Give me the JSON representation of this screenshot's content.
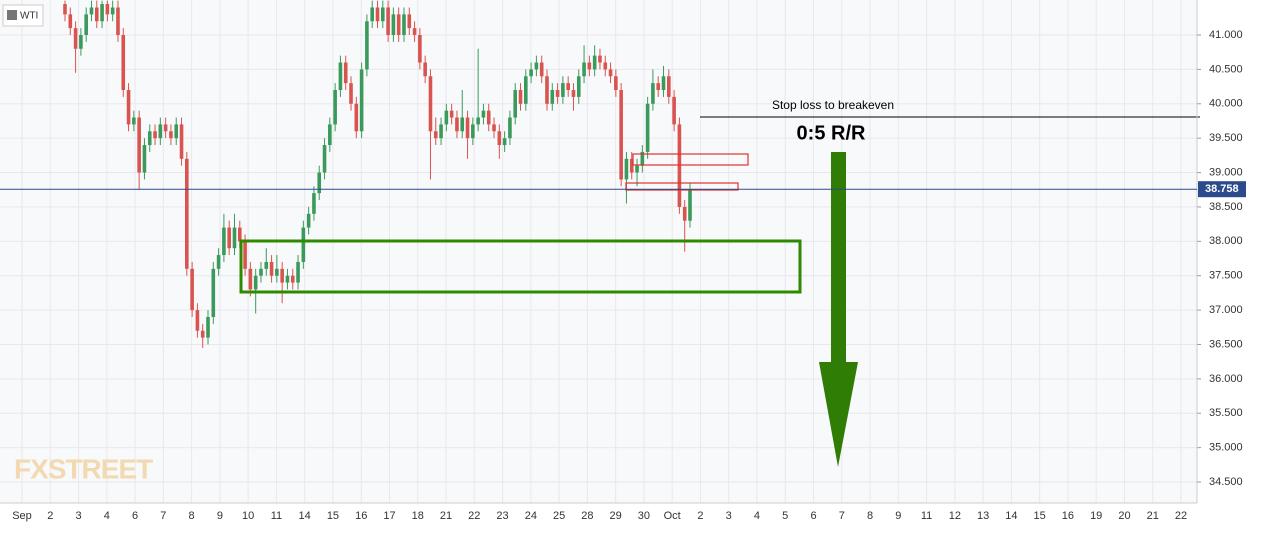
{
  "chart_data": {
    "type": "candlestick",
    "symbol": "WTI",
    "categories": [
      "Sep",
      "2",
      "3",
      "4",
      "6",
      "7",
      "8",
      "9",
      "10",
      "11",
      "14",
      "15",
      "16",
      "17",
      "18",
      "21",
      "22",
      "23",
      "24",
      "25",
      "28",
      "29",
      "30",
      "Oct",
      "2",
      "3",
      "4",
      "5",
      "6",
      "7",
      "8",
      "9",
      "11",
      "12",
      "13",
      "14",
      "15",
      "16",
      "19",
      "20",
      "21",
      "22"
    ],
    "candles": [
      [
        41.45,
        41.5,
        41.2,
        41.3
      ],
      [
        41.3,
        41.4,
        41.0,
        41.1
      ],
      [
        41.1,
        41.2,
        40.45,
        40.8
      ],
      [
        40.8,
        41.1,
        40.7,
        41.0
      ],
      [
        41.0,
        41.4,
        40.9,
        41.3
      ],
      [
        41.3,
        41.5,
        41.2,
        41.4
      ],
      [
        41.4,
        41.5,
        41.1,
        41.2
      ],
      [
        41.2,
        41.5,
        41.1,
        41.45
      ],
      [
        41.45,
        41.5,
        41.2,
        41.3
      ],
      [
        41.3,
        41.5,
        41.2,
        41.4
      ],
      [
        41.4,
        41.5,
        40.9,
        41.0
      ],
      [
        41.0,
        41.1,
        40.1,
        40.2
      ],
      [
        40.2,
        40.3,
        39.6,
        39.7
      ],
      [
        39.7,
        39.9,
        39.6,
        39.8
      ],
      [
        39.8,
        39.9,
        38.75,
        39.0
      ],
      [
        39.0,
        39.5,
        38.9,
        39.4
      ],
      [
        39.4,
        39.7,
        39.3,
        39.6
      ],
      [
        39.6,
        39.7,
        39.4,
        39.5
      ],
      [
        39.5,
        39.8,
        39.4,
        39.7
      ],
      [
        39.7,
        39.8,
        39.5,
        39.6
      ],
      [
        39.6,
        39.7,
        39.4,
        39.5
      ],
      [
        39.5,
        39.8,
        39.4,
        39.7
      ],
      [
        39.7,
        39.8,
        39.1,
        39.2
      ],
      [
        39.2,
        39.3,
        37.5,
        37.6
      ],
      [
        37.6,
        37.7,
        36.9,
        37.0
      ],
      [
        37.0,
        37.1,
        36.6,
        36.7
      ],
      [
        36.7,
        36.8,
        36.45,
        36.6
      ],
      [
        36.6,
        37.0,
        36.5,
        36.9
      ],
      [
        36.9,
        37.7,
        36.8,
        37.6
      ],
      [
        37.6,
        37.9,
        37.5,
        37.8
      ],
      [
        37.8,
        38.4,
        37.7,
        38.2
      ],
      [
        38.2,
        38.3,
        37.8,
        37.9
      ],
      [
        37.9,
        38.4,
        37.8,
        38.2
      ],
      [
        38.2,
        38.3,
        37.9,
        38.0
      ],
      [
        38.0,
        38.1,
        37.5,
        37.6
      ],
      [
        37.6,
        37.7,
        37.2,
        37.3
      ],
      [
        37.3,
        37.6,
        36.95,
        37.5
      ],
      [
        37.5,
        37.7,
        37.4,
        37.6
      ],
      [
        37.6,
        37.9,
        37.5,
        37.7
      ],
      [
        37.7,
        37.8,
        37.4,
        37.5
      ],
      [
        37.5,
        37.8,
        37.4,
        37.6
      ],
      [
        37.6,
        37.7,
        37.1,
        37.4
      ],
      [
        37.4,
        37.6,
        37.3,
        37.5
      ],
      [
        37.5,
        37.6,
        37.3,
        37.4
      ],
      [
        37.4,
        37.8,
        37.3,
        37.7
      ],
      [
        37.7,
        38.3,
        37.6,
        38.2
      ],
      [
        38.2,
        38.5,
        38.1,
        38.4
      ],
      [
        38.4,
        38.8,
        38.3,
        38.7
      ],
      [
        38.7,
        39.1,
        38.6,
        39.0
      ],
      [
        39.0,
        39.5,
        38.9,
        39.4
      ],
      [
        39.4,
        39.8,
        39.3,
        39.7
      ],
      [
        39.7,
        40.3,
        39.6,
        40.2
      ],
      [
        40.2,
        40.7,
        40.1,
        40.6
      ],
      [
        40.6,
        40.7,
        40.2,
        40.3
      ],
      [
        40.3,
        40.4,
        39.9,
        40.0
      ],
      [
        40.0,
        40.1,
        39.5,
        39.6
      ],
      [
        39.6,
        40.6,
        39.5,
        40.5
      ],
      [
        40.5,
        41.3,
        40.4,
        41.2
      ],
      [
        41.2,
        41.5,
        41.1,
        41.4
      ],
      [
        41.4,
        41.5,
        41.1,
        41.2
      ],
      [
        41.2,
        41.5,
        41.1,
        41.4
      ],
      [
        41.4,
        41.5,
        40.9,
        41.0
      ],
      [
        41.0,
        41.4,
        40.9,
        41.3
      ],
      [
        41.3,
        41.4,
        40.9,
        41.0
      ],
      [
        41.0,
        41.4,
        40.9,
        41.3
      ],
      [
        41.3,
        41.4,
        41.0,
        41.1
      ],
      [
        41.1,
        41.2,
        40.9,
        41.0
      ],
      [
        41.0,
        41.1,
        40.5,
        40.6
      ],
      [
        40.6,
        40.7,
        40.3,
        40.4
      ],
      [
        40.4,
        40.5,
        38.9,
        39.6
      ],
      [
        39.6,
        39.8,
        39.4,
        39.5
      ],
      [
        39.5,
        39.8,
        39.4,
        39.7
      ],
      [
        39.7,
        40.0,
        39.6,
        39.9
      ],
      [
        39.9,
        40.0,
        39.7,
        39.8
      ],
      [
        39.8,
        39.9,
        39.5,
        39.6
      ],
      [
        39.6,
        40.2,
        39.5,
        39.8
      ],
      [
        39.8,
        39.9,
        39.2,
        39.5
      ],
      [
        39.5,
        39.8,
        39.4,
        39.7
      ],
      [
        39.7,
        40.8,
        39.6,
        39.8
      ],
      [
        39.8,
        40.0,
        39.7,
        39.9
      ],
      [
        39.9,
        40.0,
        39.6,
        39.7
      ],
      [
        39.7,
        39.8,
        39.5,
        39.6
      ],
      [
        39.6,
        39.7,
        39.2,
        39.4
      ],
      [
        39.4,
        39.6,
        39.3,
        39.5
      ],
      [
        39.5,
        39.9,
        39.4,
        39.8
      ],
      [
        39.8,
        40.3,
        39.7,
        40.2
      ],
      [
        40.2,
        40.3,
        39.9,
        40.0
      ],
      [
        40.0,
        40.5,
        39.9,
        40.4
      ],
      [
        40.4,
        40.6,
        40.3,
        40.5
      ],
      [
        40.5,
        40.7,
        40.4,
        40.6
      ],
      [
        40.6,
        40.7,
        40.3,
        40.4
      ],
      [
        40.4,
        40.5,
        39.9,
        40.0
      ],
      [
        40.0,
        40.3,
        39.9,
        40.2
      ],
      [
        40.2,
        40.3,
        40.0,
        40.1
      ],
      [
        40.1,
        40.4,
        40.0,
        40.3
      ],
      [
        40.3,
        40.4,
        40.1,
        40.2
      ],
      [
        40.2,
        40.3,
        39.9,
        40.1
      ],
      [
        40.1,
        40.5,
        40.0,
        40.4
      ],
      [
        40.4,
        40.85,
        40.3,
        40.6
      ],
      [
        40.6,
        40.7,
        40.4,
        40.5
      ],
      [
        40.5,
        40.85,
        40.4,
        40.7
      ],
      [
        40.7,
        40.8,
        40.5,
        40.6
      ],
      [
        40.6,
        40.7,
        40.4,
        40.5
      ],
      [
        40.5,
        40.6,
        40.3,
        40.4
      ],
      [
        40.4,
        40.5,
        40.1,
        40.2
      ],
      [
        40.2,
        40.3,
        38.8,
        38.9
      ],
      [
        38.9,
        39.3,
        38.55,
        39.2
      ],
      [
        39.2,
        39.3,
        38.9,
        39.0
      ],
      [
        39.0,
        39.2,
        38.8,
        39.1
      ],
      [
        39.1,
        39.4,
        39.0,
        39.3
      ],
      [
        39.3,
        40.1,
        39.2,
        40.0
      ],
      [
        40.0,
        40.5,
        39.9,
        40.3
      ],
      [
        40.3,
        40.4,
        40.1,
        40.2
      ],
      [
        40.2,
        40.55,
        40.1,
        40.4
      ],
      [
        40.4,
        40.5,
        40.0,
        40.1
      ],
      [
        40.1,
        40.2,
        39.6,
        39.7
      ],
      [
        39.7,
        39.8,
        38.4,
        38.5
      ],
      [
        38.5,
        38.6,
        37.85,
        38.3
      ],
      [
        38.3,
        38.85,
        38.2,
        38.76
      ]
    ],
    "up_color": "#3a9a5c",
    "down_color": "#d9534f",
    "ylim": [
      34.195,
      41.509
    ],
    "yticks": [
      {
        "value": 34.5,
        "label": "34.500"
      },
      {
        "value": 35,
        "label": "35.000"
      },
      {
        "value": 35.5,
        "label": "35.500"
      },
      {
        "value": 36,
        "label": "36.000"
      },
      {
        "value": 36.5,
        "label": "36.500"
      },
      {
        "value": 37,
        "label": "37.000"
      },
      {
        "value": 37.5,
        "label": "37.500"
      },
      {
        "value": 38,
        "label": "38.000"
      },
      {
        "value": 38.5,
        "label": "38.500"
      },
      {
        "value": 39,
        "label": "39.000"
      },
      {
        "value": 39.5,
        "label": "39.500"
      },
      {
        "value": 40,
        "label": "40.000"
      },
      {
        "value": 40.5,
        "label": "40.500"
      },
      {
        "value": 41,
        "label": "41.000"
      }
    ],
    "grid": true,
    "current_price": {
      "value": 38.758,
      "label": "38.758"
    },
    "annotations": [
      "Stop loss to breakeven",
      "0:5 R/R"
    ]
  },
  "watermark": "FXSTREET"
}
